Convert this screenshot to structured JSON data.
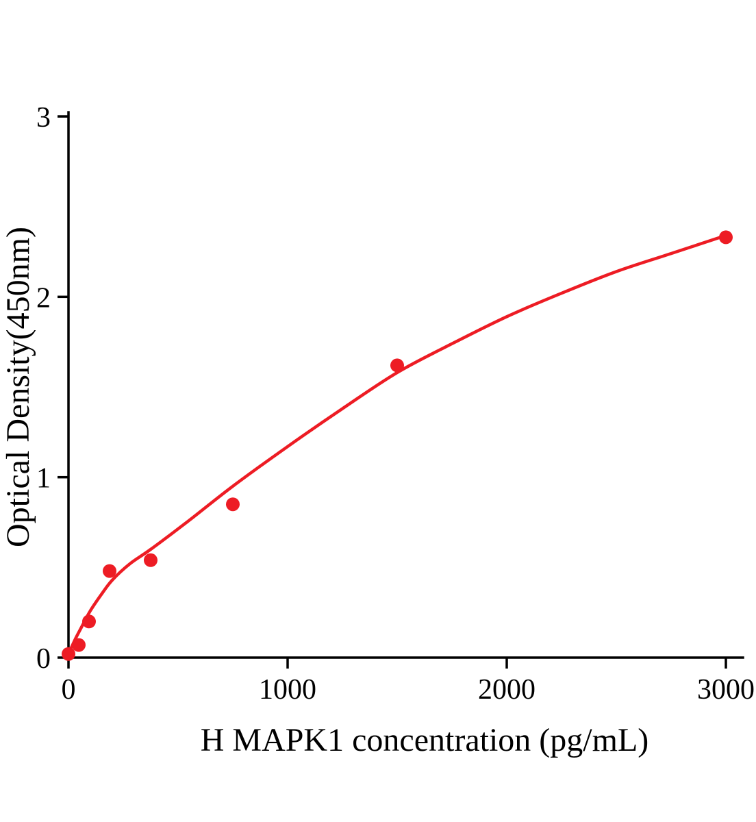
{
  "figure": {
    "background": "#ffffff"
  },
  "chart_data": {
    "type": "scatter",
    "subtype": "elisa-standard-curve-with-fit",
    "title": "",
    "xlabel": "H MAPK1 concentration (pg/mL)",
    "ylabel": "Optical Density(450nm)",
    "xlim": [
      0,
      3078
    ],
    "ylim": [
      0,
      3
    ],
    "xticks": [
      0,
      1000,
      2000,
      3000
    ],
    "yticks": [
      0,
      1,
      2,
      3
    ],
    "grid": false,
    "legend": "none",
    "accent_color": "#ed1c24",
    "axis_color": "#000000",
    "points": {
      "x": [
        0,
        46.9,
        93.8,
        187.5,
        375,
        750,
        1500,
        3000
      ],
      "y": [
        0.02,
        0.07,
        0.2,
        0.48,
        0.54,
        0.85,
        1.62,
        2.33
      ]
    },
    "fit_curve": {
      "x": [
        0,
        30,
        60,
        100,
        150,
        200,
        280,
        375,
        550,
        750,
        1000,
        1250,
        1500,
        1750,
        2000,
        2250,
        2500,
        2750,
        3000
      ],
      "y": [
        0.02,
        0.1,
        0.17,
        0.26,
        0.35,
        0.43,
        0.52,
        0.6,
        0.76,
        0.95,
        1.17,
        1.38,
        1.58,
        1.74,
        1.89,
        2.02,
        2.14,
        2.24,
        2.34
      ]
    }
  }
}
